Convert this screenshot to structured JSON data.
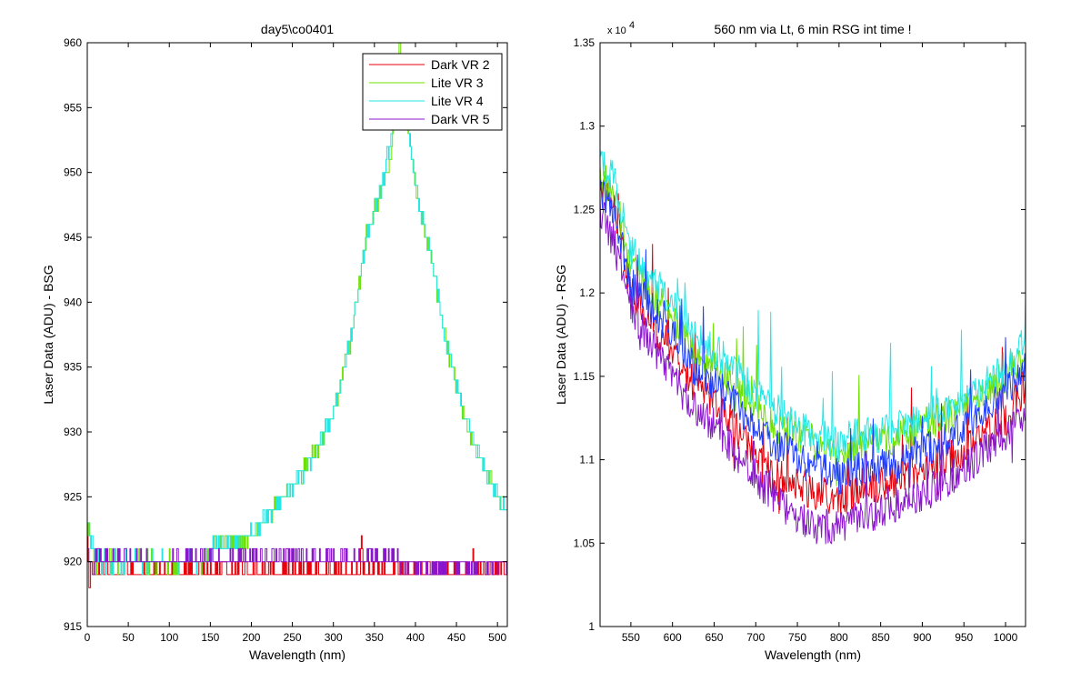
{
  "chart_data": [
    {
      "type": "line",
      "title": "day5\\co0401",
      "xlabel": "Wavelength (nm)",
      "ylabel": "Laser Data (ADU) - BSG",
      "xlim": [
        0,
        512
      ],
      "ylim": [
        915,
        960
      ],
      "x_ticks": [
        0,
        50,
        100,
        150,
        200,
        250,
        300,
        350,
        400,
        450,
        500
      ],
      "y_ticks": [
        915,
        920,
        925,
        930,
        935,
        940,
        945,
        950,
        955,
        960
      ],
      "tick_labels_x": [
        "0",
        "50",
        "100",
        "150",
        "200",
        "250",
        "300",
        "350",
        "400",
        "450",
        "500"
      ],
      "tick_labels_y": [
        "915",
        "920",
        "925",
        "930",
        "935",
        "940",
        "945",
        "950",
        "955",
        "960"
      ],
      "grid": false,
      "legend_position": "top-right",
      "series": [
        {
          "name": "Dark VR 2",
          "color": "#e8000b",
          "x": [
            0,
            2,
            5,
            10,
            50,
            100,
            150,
            200,
            250,
            300,
            332,
            334,
            336,
            350,
            400,
            450,
            468,
            470,
            472,
            500,
            512
          ],
          "y": [
            922,
            917,
            920,
            919,
            919,
            919,
            919,
            919,
            919,
            919,
            919,
            922,
            919,
            919,
            919,
            919,
            919,
            921,
            919,
            919,
            919
          ]
        },
        {
          "name": "Lite VR 3",
          "color": "#6fe000",
          "x": [
            0,
            10,
            50,
            100,
            140,
            150,
            175,
            200,
            225,
            250,
            275,
            300,
            320,
            340,
            360,
            370,
            380,
            390,
            400,
            420,
            440,
            460,
            480,
            500,
            512
          ],
          "y": [
            923,
            920,
            920,
            920,
            920,
            921,
            921.5,
            922,
            924,
            926,
            928,
            931.5,
            937,
            945,
            949,
            951,
            960,
            954,
            949,
            943,
            936,
            931,
            928,
            925,
            924
          ]
        },
        {
          "name": "Lite VR 4",
          "color": "#26e6e6",
          "x": [
            0,
            10,
            50,
            100,
            140,
            150,
            175,
            200,
            225,
            250,
            275,
            300,
            320,
            340,
            360,
            370,
            380,
            390,
            400,
            420,
            440,
            460,
            480,
            500,
            512
          ],
          "y": [
            923,
            920,
            920,
            920,
            920,
            921,
            921.5,
            922,
            924,
            926,
            928,
            931.5,
            937,
            945,
            949,
            953,
            956,
            954,
            949,
            943,
            936,
            931,
            928,
            925,
            924
          ]
        },
        {
          "name": "Dark VR 5",
          "color": "#8a16cc",
          "x": [
            0,
            3,
            10,
            50,
            100,
            150,
            200,
            250,
            298,
            300,
            302,
            350,
            400,
            450,
            500,
            512
          ],
          "y": [
            922,
            919,
            919.5,
            919.5,
            919.5,
            919.5,
            919.5,
            919.5,
            919.5,
            921,
            919.5,
            919.5,
            920,
            920,
            920,
            920
          ]
        }
      ]
    },
    {
      "type": "line",
      "title": "560 nm via Lt, 6 min RSG int time !",
      "xlabel": "Wavelength (nm)",
      "ylabel": "Laser Data (ADU) - RSG",
      "y_multiplier": "x 10",
      "y_multiplier_exp": "4",
      "xlim": [
        513,
        1024
      ],
      "ylim": [
        1.0,
        1.35
      ],
      "x_ticks": [
        550,
        600,
        650,
        700,
        750,
        800,
        850,
        900,
        950,
        1000
      ],
      "y_ticks": [
        1.0,
        1.05,
        1.1,
        1.15,
        1.2,
        1.25,
        1.3,
        1.35
      ],
      "tick_labels_x": [
        "550",
        "600",
        "650",
        "700",
        "750",
        "800",
        "850",
        "900",
        "950",
        "1000"
      ],
      "tick_labels_y": [
        "1",
        "1.05",
        "1.1",
        "1.15",
        "1.2",
        "1.25",
        "1.3",
        "1.35"
      ],
      "grid": false,
      "series": [
        {
          "color": "#e8000b",
          "x": [
            513,
            530,
            550,
            575,
            600,
            625,
            650,
            675,
            700,
            725,
            750,
            775,
            800,
            825,
            850,
            875,
            900,
            925,
            950,
            975,
            1000,
            1024
          ],
          "y": [
            1.27,
            1.25,
            1.2,
            1.18,
            1.165,
            1.145,
            1.135,
            1.12,
            1.1,
            1.09,
            1.085,
            1.08,
            1.075,
            1.085,
            1.085,
            1.09,
            1.095,
            1.1,
            1.105,
            1.115,
            1.125,
            1.145
          ]
        },
        {
          "color": "#6fe000",
          "x": [
            513,
            530,
            550,
            575,
            600,
            625,
            650,
            675,
            700,
            725,
            750,
            775,
            800,
            825,
            850,
            875,
            900,
            925,
            950,
            975,
            1000,
            1024
          ],
          "y": [
            1.27,
            1.26,
            1.215,
            1.2,
            1.185,
            1.165,
            1.155,
            1.145,
            1.13,
            1.12,
            1.115,
            1.11,
            1.105,
            1.11,
            1.11,
            1.115,
            1.12,
            1.125,
            1.13,
            1.14,
            1.15,
            1.165
          ]
        },
        {
          "color": "#26e6e6",
          "x": [
            513,
            530,
            550,
            575,
            600,
            625,
            650,
            675,
            700,
            725,
            750,
            775,
            800,
            825,
            850,
            875,
            900,
            925,
            950,
            975,
            1000,
            1024
          ],
          "y": [
            1.28,
            1.27,
            1.225,
            1.21,
            1.195,
            1.175,
            1.165,
            1.155,
            1.14,
            1.13,
            1.12,
            1.115,
            1.11,
            1.115,
            1.115,
            1.12,
            1.125,
            1.13,
            1.135,
            1.145,
            1.155,
            1.17
          ]
        },
        {
          "color": "#1f3dff",
          "x": [
            513,
            530,
            550,
            575,
            600,
            625,
            650,
            675,
            700,
            725,
            750,
            775,
            800,
            825,
            850,
            875,
            900,
            925,
            950,
            975,
            1000,
            1024
          ],
          "y": [
            1.26,
            1.25,
            1.205,
            1.19,
            1.175,
            1.155,
            1.145,
            1.135,
            1.12,
            1.11,
            1.1,
            1.095,
            1.09,
            1.095,
            1.095,
            1.1,
            1.105,
            1.11,
            1.12,
            1.13,
            1.14,
            1.155
          ]
        },
        {
          "color": "#8a16cc",
          "x": [
            513,
            530,
            550,
            575,
            600,
            625,
            650,
            675,
            700,
            725,
            750,
            775,
            800,
            825,
            850,
            875,
            900,
            925,
            950,
            975,
            1000,
            1024
          ],
          "y": [
            1.25,
            1.23,
            1.19,
            1.17,
            1.15,
            1.13,
            1.12,
            1.105,
            1.09,
            1.075,
            1.065,
            1.06,
            1.06,
            1.065,
            1.07,
            1.075,
            1.08,
            1.085,
            1.095,
            1.105,
            1.115,
            1.13
          ]
        }
      ]
    }
  ]
}
